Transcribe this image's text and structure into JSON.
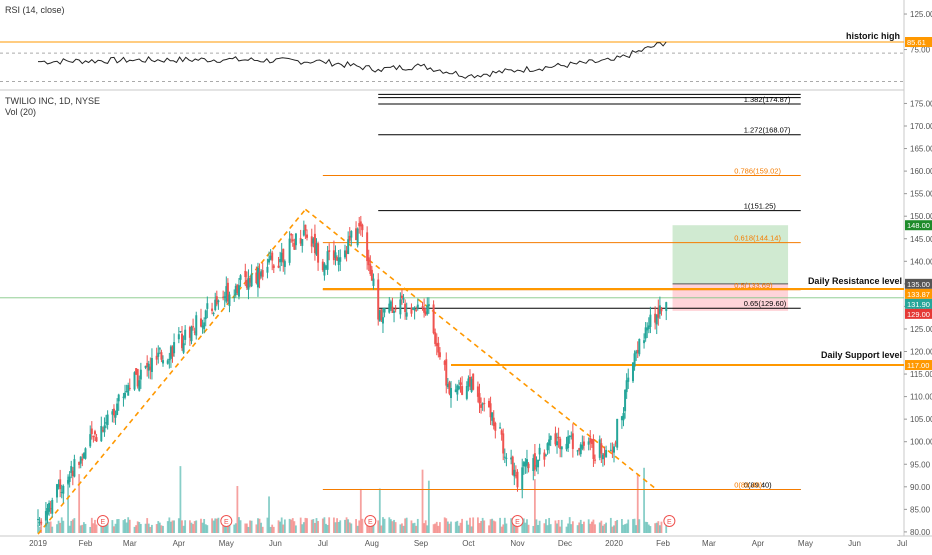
{
  "rsi_pane": {
    "title": "RSI (14, close)",
    "annotation": "historic high",
    "current_value": 85.61,
    "ticks": [
      125,
      75
    ],
    "guide_levels": [
      70,
      30
    ],
    "series_summary": [
      {
        "date": "2019-01-02",
        "value": 58
      },
      {
        "date": "2019-03-01",
        "value": 60
      },
      {
        "date": "2019-05-01",
        "value": 61
      },
      {
        "date": "2019-07-01",
        "value": 58
      },
      {
        "date": "2019-08-05",
        "value": 47
      },
      {
        "date": "2019-09-01",
        "value": 52
      },
      {
        "date": "2019-10-01",
        "value": 38
      },
      {
        "date": "2019-11-01",
        "value": 46
      },
      {
        "date": "2020-01-01",
        "value": 60
      },
      {
        "date": "2020-02-03",
        "value": 85.61
      }
    ]
  },
  "main_pane": {
    "symbol_line": "TWILIO INC, 1D, NYSE",
    "volume_label": "Vol (20)",
    "ticks": [
      175,
      170,
      165,
      160,
      155,
      150,
      145,
      140,
      135,
      130,
      125,
      120,
      115,
      110,
      105,
      100,
      95,
      90,
      85,
      80
    ],
    "x_labels": [
      "2019",
      "Feb",
      "Mar",
      "Apr",
      "May",
      "Jun",
      "Jul",
      "Aug",
      "Sep",
      "Oct",
      "Nov",
      "Dec",
      "2020",
      "Feb",
      "Mar",
      "Apr",
      "May",
      "Jun",
      "Jul"
    ]
  },
  "price_labels": [
    {
      "value": 148.0,
      "text": "148.00",
      "color": "#1e8b2a"
    },
    {
      "value": 135.0,
      "text": "135.00",
      "color": "#555555"
    },
    {
      "value": 133.87,
      "text": "133.87",
      "color": "#ff9800"
    },
    {
      "value": 131.9,
      "text": "131.90",
      "color": "#26a69a"
    },
    {
      "value": 129.0,
      "text": "129.00",
      "color": "#e53935"
    },
    {
      "value": 117.0,
      "text": "117.00",
      "color": "#ff9800"
    }
  ],
  "fib_levels": [
    {
      "text": "1.382(174.87)",
      "value": 174.87,
      "color": "#000000"
    },
    {
      "text": "1.272(168.07)",
      "value": 168.07,
      "color": "#000000"
    },
    {
      "text": "0.786(159.02)",
      "value": 159.02,
      "color": "#f57c00"
    },
    {
      "text": "1(151.25)",
      "value": 151.25,
      "color": "#000000"
    },
    {
      "text": "0.618(144.14)",
      "value": 144.14,
      "color": "#f57c00"
    },
    {
      "text": "0.5(133.69)",
      "value": 133.69,
      "color": "#f57c00"
    },
    {
      "text": "0.65(129.60)",
      "value": 129.6,
      "color": "#000000"
    },
    {
      "text": "0(89.40)",
      "value": 89.4,
      "color": "#000000"
    },
    {
      "text": "0(89.40)",
      "value": 89.4,
      "color": "#f57c00"
    }
  ],
  "annotations": {
    "resistance": "Daily Resistance  level",
    "support": "Daily Support level"
  },
  "trade_box": {
    "target": 148.0,
    "entry": 135.0,
    "stop": 129.0
  },
  "colors": {
    "up": "#26a69a",
    "down": "#ef5350",
    "fib_orange": "#f57c00",
    "level_orange": "#ff9800",
    "profit": "#c8e6c9",
    "loss": "#ffcdd2"
  },
  "chart_data": {
    "type": "line",
    "title": "TWILIO INC, 1D, NYSE",
    "xlabel": "",
    "ylabel": "",
    "ylim": [
      79,
      179
    ],
    "x": [
      "2019-01-02",
      "2019-02-01",
      "2019-03-01",
      "2019-04-01",
      "2019-05-01",
      "2019-06-01",
      "2019-06-20",
      "2019-07-01",
      "2019-07-15",
      "2019-07-26",
      "2019-08-05",
      "2019-08-20",
      "2019-09-05",
      "2019-09-20",
      "2019-10-01",
      "2019-10-15",
      "2019-11-01",
      "2019-11-20",
      "2019-12-01",
      "2019-12-20",
      "2020-01-01",
      "2020-01-15",
      "2020-02-03"
    ],
    "series": [
      {
        "values": [
          83,
          98,
          113,
          122,
          133,
          140,
          147,
          140,
          143,
          148,
          128,
          131,
          130,
          110,
          114,
          106,
          92,
          99,
          101,
          98,
          100,
          120,
          133
        ]
      }
    ]
  }
}
